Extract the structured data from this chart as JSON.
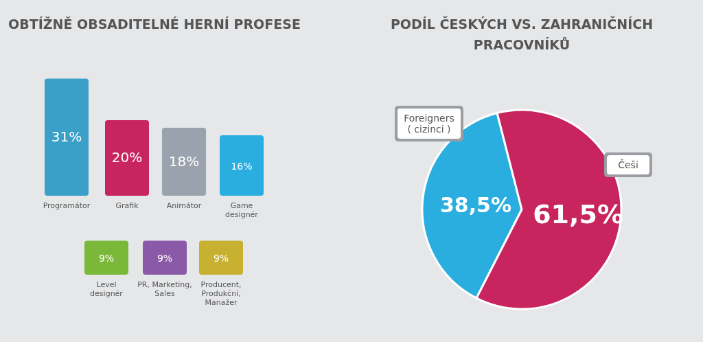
{
  "chart_data": [
    {
      "type": "bar",
      "title": "OBTÍŽNĚ OBSADITELNÉ HERNÍ PROFESE",
      "categories": [
        "Programátor",
        "Grafik",
        "Animátor",
        "Game\ndesignér"
      ],
      "values": [
        31,
        20,
        18,
        16
      ],
      "value_labels": [
        "31%",
        "20%",
        "18%",
        "16%"
      ],
      "colors": [
        "#3aa0c8",
        "#c8245e",
        "#9aa3ad",
        "#2aaee0"
      ]
    },
    {
      "type": "bar",
      "categories": [
        "Level\ndesignér",
        "PR, Marketing,\nSales",
        "Producent,\nProdukční,\nManažer"
      ],
      "values": [
        9,
        9,
        9
      ],
      "value_labels": [
        "9%",
        "9%",
        "9%"
      ],
      "colors": [
        "#7ab83a",
        "#8a5aa8",
        "#c8b030"
      ]
    },
    {
      "type": "pie",
      "title": "PODÍL ČESKÝCH VS. ZAHRANIČNÍCH\nPRACOVNÍKŮ",
      "categories": [
        "Foreigners\n( cizinci )",
        "Češi"
      ],
      "values": [
        38.5,
        61.5
      ],
      "value_labels": [
        "38,5%",
        "61,5%"
      ],
      "colors": [
        "#2aaee0",
        "#c8245e"
      ]
    }
  ]
}
